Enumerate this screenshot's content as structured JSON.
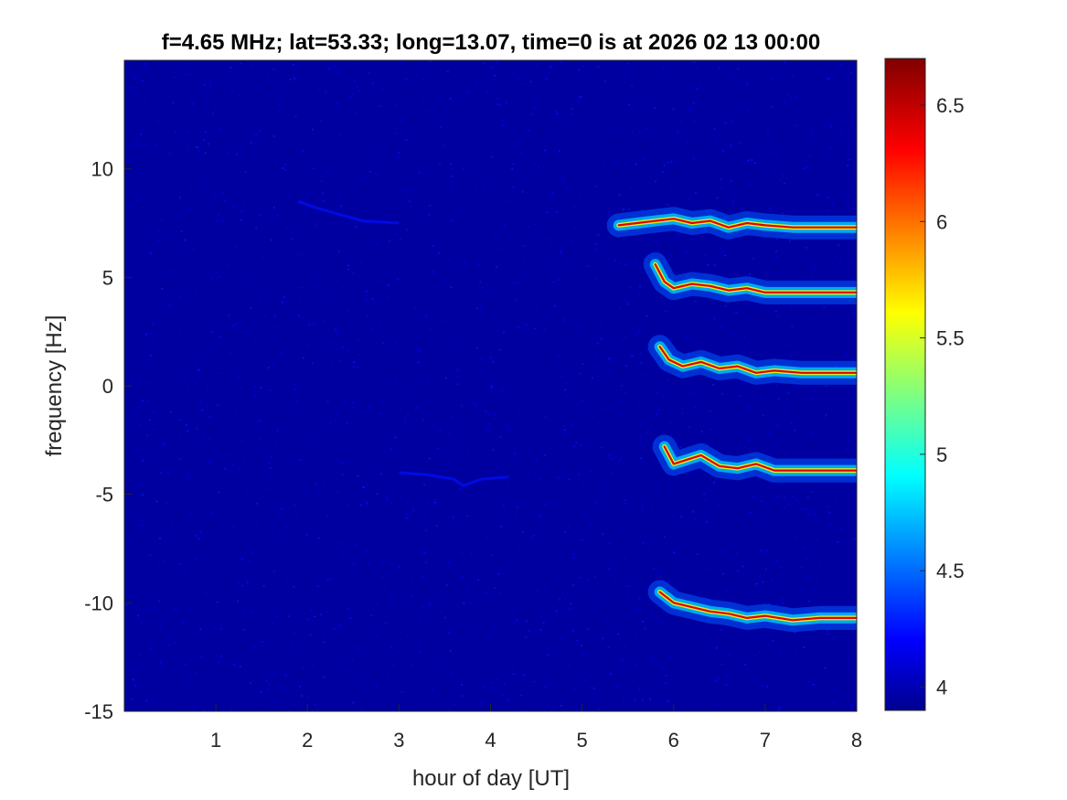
{
  "chart_data": {
    "type": "heatmap",
    "title": "f=4.65 MHz;  lat=53.33; long=13.07, time=0 is at 2026 02 13 00:00",
    "xlabel": "hour of day [UT]",
    "ylabel": "frequency [Hz]",
    "xlim": [
      0,
      8
    ],
    "ylim": [
      -15,
      15
    ],
    "xticks": [
      1,
      2,
      3,
      4,
      5,
      6,
      7,
      8
    ],
    "xtick_labels": [
      "1",
      "2",
      "3",
      "4",
      "5",
      "6",
      "7",
      "8"
    ],
    "yticks": [
      -15,
      -10,
      -5,
      0,
      5,
      10
    ],
    "ytick_labels": [
      "-15",
      "-10",
      "-5",
      "0",
      "5",
      "10"
    ],
    "colorbar": {
      "range": [
        3.9,
        6.7
      ],
      "colormap": "jet",
      "ticks": [
        4,
        4.5,
        5,
        5.5,
        6,
        6.5
      ],
      "tick_labels": [
        "4",
        "4.5",
        "5",
        "5.5",
        "6",
        "6.5"
      ]
    },
    "background_value": 3.95,
    "traces": [
      {
        "start_hour": 5.4,
        "points": [
          [
            5.4,
            7.4
          ],
          [
            5.6,
            7.5
          ],
          [
            5.8,
            7.6
          ],
          [
            6.0,
            7.7
          ],
          [
            6.2,
            7.5
          ],
          [
            6.4,
            7.6
          ],
          [
            6.6,
            7.3
          ],
          [
            6.8,
            7.5
          ],
          [
            7.0,
            7.4
          ],
          [
            7.3,
            7.3
          ],
          [
            7.6,
            7.3
          ],
          [
            8.0,
            7.3
          ]
        ]
      },
      {
        "start_hour": 5.8,
        "points": [
          [
            5.8,
            5.6
          ],
          [
            5.9,
            4.8
          ],
          [
            6.0,
            4.5
          ],
          [
            6.2,
            4.7
          ],
          [
            6.4,
            4.6
          ],
          [
            6.6,
            4.4
          ],
          [
            6.8,
            4.5
          ],
          [
            7.0,
            4.3
          ],
          [
            7.3,
            4.3
          ],
          [
            7.6,
            4.3
          ],
          [
            8.0,
            4.3
          ]
        ]
      },
      {
        "start_hour": 5.85,
        "points": [
          [
            5.85,
            1.8
          ],
          [
            5.95,
            1.2
          ],
          [
            6.1,
            0.9
          ],
          [
            6.3,
            1.1
          ],
          [
            6.5,
            0.8
          ],
          [
            6.7,
            0.9
          ],
          [
            6.9,
            0.6
          ],
          [
            7.1,
            0.7
          ],
          [
            7.4,
            0.6
          ],
          [
            7.7,
            0.6
          ],
          [
            8.0,
            0.6
          ]
        ]
      },
      {
        "start_hour": 5.9,
        "points": [
          [
            5.9,
            -2.8
          ],
          [
            6.0,
            -3.6
          ],
          [
            6.15,
            -3.4
          ],
          [
            6.3,
            -3.2
          ],
          [
            6.5,
            -3.7
          ],
          [
            6.7,
            -3.8
          ],
          [
            6.9,
            -3.6
          ],
          [
            7.1,
            -3.9
          ],
          [
            7.4,
            -3.9
          ],
          [
            7.7,
            -3.9
          ],
          [
            8.0,
            -3.9
          ]
        ]
      },
      {
        "start_hour": 5.85,
        "points": [
          [
            5.85,
            -9.5
          ],
          [
            6.0,
            -10.0
          ],
          [
            6.2,
            -10.2
          ],
          [
            6.4,
            -10.4
          ],
          [
            6.6,
            -10.5
          ],
          [
            6.8,
            -10.7
          ],
          [
            7.0,
            -10.6
          ],
          [
            7.3,
            -10.8
          ],
          [
            7.6,
            -10.7
          ],
          [
            8.0,
            -10.7
          ]
        ]
      }
    ],
    "faint_features": [
      {
        "points": [
          [
            3.0,
            -4.0
          ],
          [
            3.3,
            -4.1
          ],
          [
            3.6,
            -4.3
          ],
          [
            3.7,
            -4.6
          ],
          [
            3.9,
            -4.3
          ],
          [
            4.2,
            -4.2
          ]
        ]
      },
      {
        "points": [
          [
            1.9,
            8.5
          ],
          [
            2.1,
            8.2
          ],
          [
            2.6,
            7.6
          ],
          [
            3.0,
            7.5
          ]
        ]
      }
    ]
  }
}
